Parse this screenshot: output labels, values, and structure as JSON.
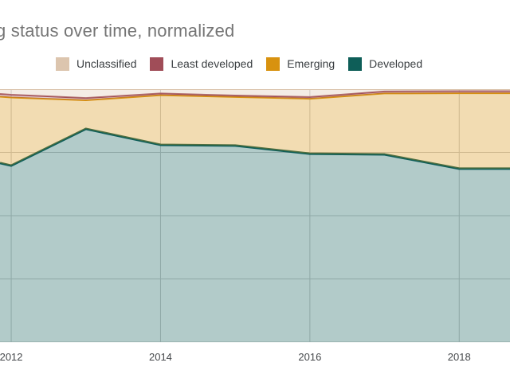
{
  "header": {
    "title": "g status over time, normalized"
  },
  "legend": {
    "items": [
      {
        "label": "Unclassified",
        "color": "#dcc5ae"
      },
      {
        "label": "Least developed",
        "color": "#a04d58"
      },
      {
        "label": "Emerging",
        "color": "#d8920f"
      },
      {
        "label": "Developed",
        "color": "#0e5e58"
      }
    ]
  },
  "x_axis": {
    "ticks": [
      {
        "year": 2012,
        "label": "2012"
      },
      {
        "year": 2014,
        "label": "2014"
      },
      {
        "year": 2016,
        "label": "2016"
      },
      {
        "year": 2018,
        "label": "2018"
      }
    ]
  },
  "colors": {
    "background": "#ffffff",
    "gridline": "#cccccc",
    "baseline": "#b5b5b5",
    "title_text": "#757575",
    "legend_text": "#3c4043",
    "axis_text": "#44474a"
  },
  "chart_data": {
    "type": "area",
    "stacked": true,
    "normalized_percent": true,
    "title": "g status over time, normalized",
    "xlabel": "",
    "ylabel": "",
    "xlim": [
      2011.85,
      2018.68
    ],
    "ylim": [
      0,
      100
    ],
    "grid": true,
    "legend_position": "top",
    "fill_opacity": 0.32,
    "x": [
      2011.85,
      2012,
      2013,
      2014,
      2015,
      2016,
      2017,
      2018,
      2018.68
    ],
    "x_tick_years": [
      2012,
      2014,
      2016,
      2018
    ],
    "series": [
      {
        "name": "Developed",
        "color": "#0e5e58",
        "values": [
          70.8,
          69.8,
          84.3,
          78.0,
          77.7,
          74.5,
          74.2,
          68.6,
          68.6
        ]
      },
      {
        "name": "Emerging",
        "color": "#d8920f",
        "values": [
          26.2,
          26.9,
          11.3,
          19.6,
          19.2,
          21.7,
          24.1,
          29.8,
          29.8
        ]
      },
      {
        "name": "Least developed",
        "color": "#a04d58",
        "values": [
          1.1,
          1.1,
          0.9,
          0.7,
          0.6,
          0.7,
          0.8,
          0.8,
          0.8
        ]
      },
      {
        "name": "Unclassified",
        "color": "#dcc5ae",
        "values": [
          1.9,
          2.2,
          3.5,
          1.7,
          2.5,
          3.1,
          0.9,
          0.8,
          0.8
        ]
      }
    ]
  }
}
